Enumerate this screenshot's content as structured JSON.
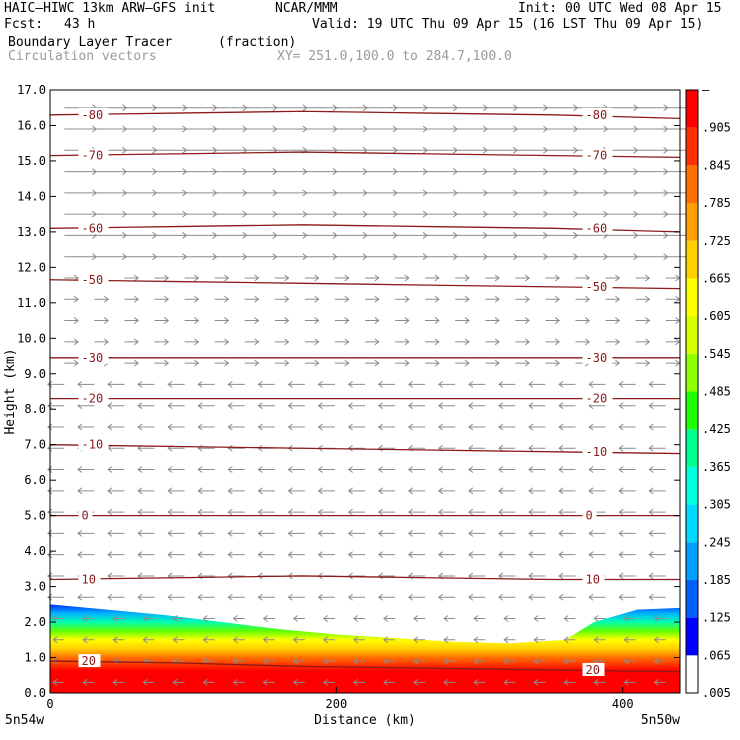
{
  "header": {
    "model": "HAIC–HIWC 13km ARW–GFS init",
    "org": "NCAR/MMM",
    "init": "Init: 00 UTC Wed 08 Apr 15",
    "fcst_label": "Fcst:",
    "fcst_value": "43 h",
    "valid": "Valid: 19 UTC Thu 09 Apr 15 (16 LST Thu 09 Apr 15)",
    "field": "Boundary Layer Tracer",
    "units": "(fraction)",
    "overlay": "Circulation vectors",
    "section": "XY= 251.0,100.0 to 284.7,100.0"
  },
  "colors": {
    "contour": "#8b1a1a",
    "vector": "#8c8c8c",
    "scale": [
      "#ffffff",
      "#0000ff",
      "#0060ff",
      "#00a0ff",
      "#00d8ff",
      "#00ffe0",
      "#00ff90",
      "#20ff00",
      "#90ff00",
      "#d8ff00",
      "#ffff00",
      "#ffd000",
      "#ffa000",
      "#ff7000",
      "#ff3000",
      "#ff0000"
    ]
  },
  "chart_data": {
    "type": "heatmap",
    "xlabel": "Distance (km)",
    "ylabel": "Height (km)",
    "xlim": [
      0,
      440
    ],
    "ylim": [
      0,
      17
    ],
    "x_ticks": [
      "0",
      "200",
      "400"
    ],
    "x_tick_values": [
      0,
      200,
      400
    ],
    "y_ticks": [
      "0.0",
      "1.0",
      "2.0",
      "3.0",
      "4.0",
      "5.0",
      "6.0",
      "7.0",
      "8.0",
      "9.0",
      "10.0",
      "11.0",
      "12.0",
      "13.0",
      "14.0",
      "15.0",
      "16.0",
      "17.0"
    ],
    "x_endpoints": {
      "left": "5n54w",
      "right": "5n50w"
    },
    "tracer_top_km": [
      [
        0,
        2.5
      ],
      [
        40,
        2.35
      ],
      [
        80,
        2.2
      ],
      [
        120,
        2.0
      ],
      [
        160,
        1.8
      ],
      [
        200,
        1.65
      ],
      [
        240,
        1.55
      ],
      [
        280,
        1.45
      ],
      [
        320,
        1.4
      ],
      [
        360,
        1.5
      ],
      [
        380,
        2.0
      ],
      [
        410,
        2.35
      ],
      [
        440,
        2.4
      ]
    ],
    "temperature_contours": [
      {
        "label": "-80",
        "y": [
          16.3,
          16.35,
          16.4,
          16.35,
          16.3,
          16.2
        ]
      },
      {
        "label": "-70",
        "y": [
          15.15,
          15.2,
          15.25,
          15.2,
          15.15,
          15.1
        ]
      },
      {
        "label": "-60",
        "y": [
          13.1,
          13.15,
          13.2,
          13.15,
          13.1,
          13.0
        ]
      },
      {
        "label": "-50",
        "y": [
          11.65,
          11.6,
          11.55,
          11.5,
          11.45,
          11.4
        ]
      },
      {
        "label": "-30",
        "y": [
          9.45,
          9.45,
          9.45,
          9.45,
          9.45,
          9.45
        ]
      },
      {
        "label": "-20",
        "y": [
          8.3,
          8.3,
          8.3,
          8.3,
          8.3,
          8.3
        ]
      },
      {
        "label": "-10",
        "y": [
          7.0,
          6.95,
          6.9,
          6.85,
          6.8,
          6.75
        ]
      },
      {
        "label": "0",
        "y": [
          5.0,
          5.0,
          5.0,
          5.0,
          5.0,
          5.0
        ]
      },
      {
        "label": "10",
        "y": [
          3.2,
          3.25,
          3.3,
          3.25,
          3.2,
          3.2
        ]
      },
      {
        "label": "20",
        "y": [
          0.9,
          0.85,
          0.75,
          0.7,
          0.65,
          0.6
        ]
      }
    ],
    "colorbar": {
      "labels": [
        "–",
        ".905",
        ".845",
        ".785",
        ".725",
        ".665",
        ".605",
        ".545",
        ".485",
        ".425",
        ".365",
        ".305",
        ".245",
        ".185",
        ".125",
        ".065",
        ".005"
      ]
    }
  }
}
